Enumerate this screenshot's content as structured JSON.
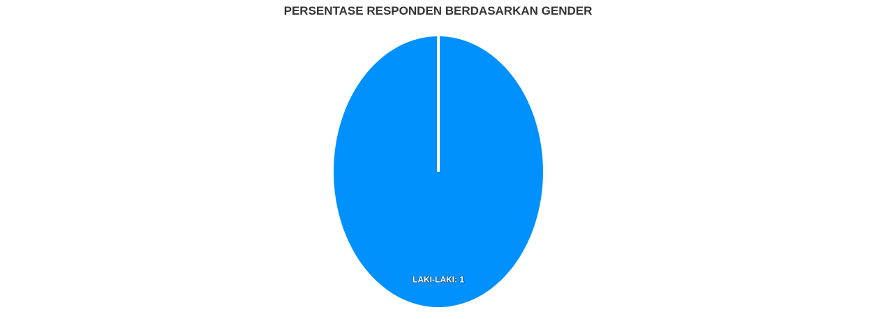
{
  "chart_data": {
    "type": "pie",
    "title": "PERSENTASE RESPONDEN BERDASARKAN GENDER",
    "categories": [
      "LAKI-LAKI"
    ],
    "values": [
      1
    ],
    "data_labels": [
      "LAKI-LAKI: 1"
    ],
    "colors": [
      "#0091ff"
    ],
    "separator_color": "#ffffff",
    "legend": "none"
  }
}
